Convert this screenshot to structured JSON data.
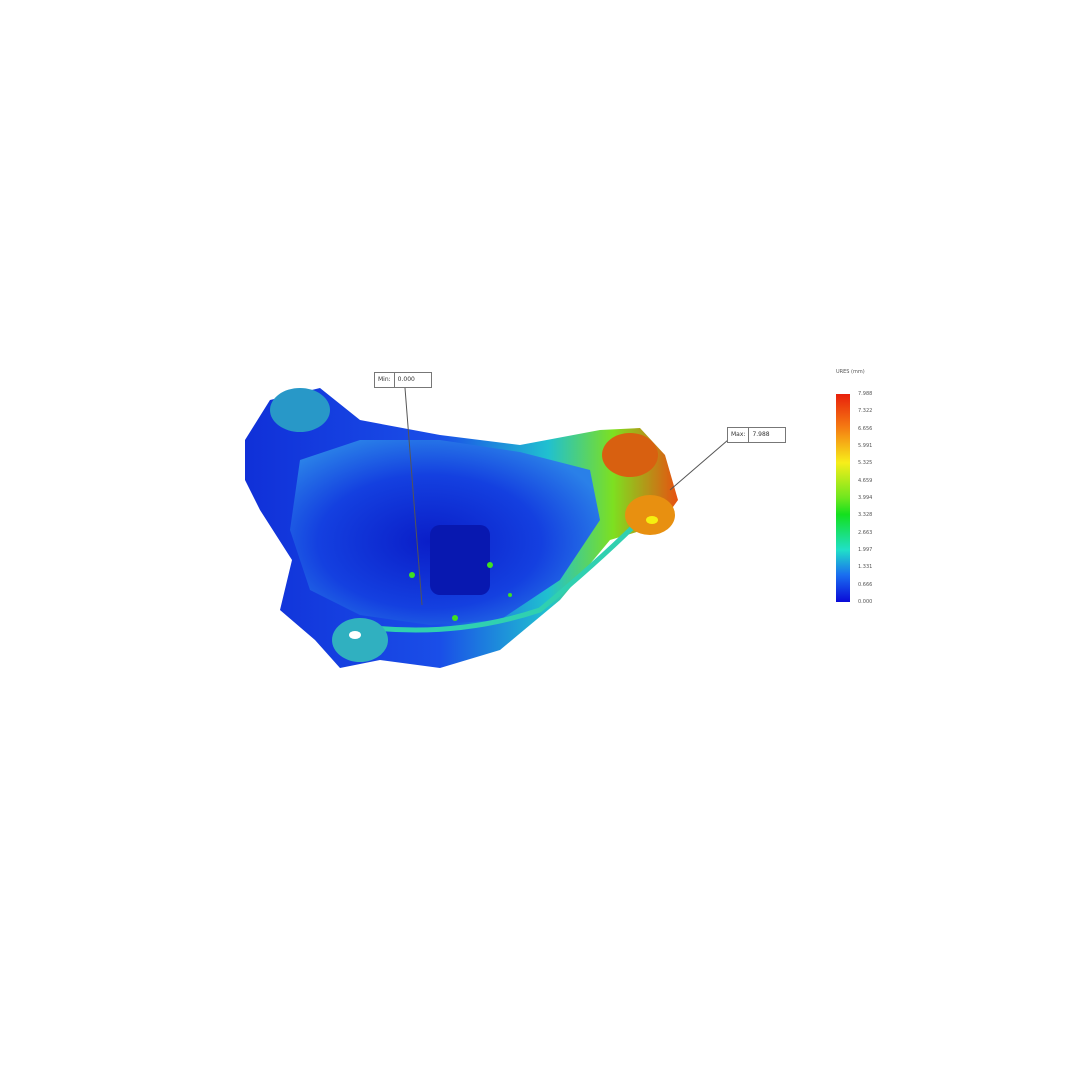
{
  "probes": {
    "min": {
      "label": "Min:",
      "value": "0.000"
    },
    "max": {
      "label": "Max:",
      "value": "7.988"
    }
  },
  "legend": {
    "title": "URES (mm)",
    "ticks": [
      "7.988",
      "7.322",
      "6.656",
      "5.991",
      "5.325",
      "4.659",
      "3.994",
      "3.328",
      "2.663",
      "1.997",
      "1.331",
      "0.666",
      "0.000"
    ],
    "colors": {
      "max": "#e8200c",
      "mid": "#13e01e",
      "min": "#0a0ad8"
    }
  }
}
